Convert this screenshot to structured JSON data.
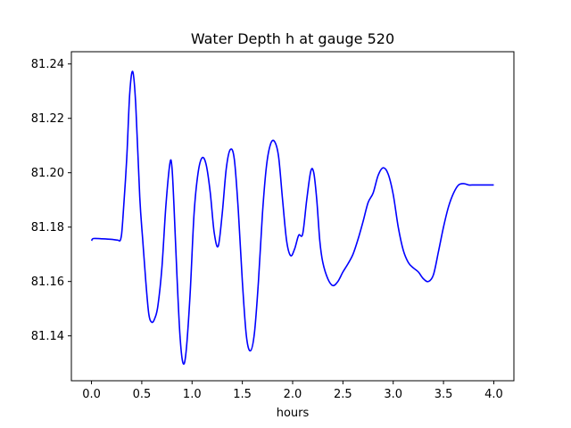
{
  "chart_data": {
    "type": "line",
    "title": "Water Depth h at gauge 520",
    "xlabel": "hours",
    "ylabel": "",
    "xlim": [
      -0.2,
      4.2
    ],
    "ylim": [
      81.1235,
      81.2445
    ],
    "xticks": [
      0.0,
      0.5,
      1.0,
      1.5,
      2.0,
      2.5,
      3.0,
      3.5,
      4.0
    ],
    "xtick_labels": [
      "0.0",
      "0.5",
      "1.0",
      "1.5",
      "2.0",
      "2.5",
      "3.0",
      "3.5",
      "4.0"
    ],
    "yticks": [
      81.14,
      81.16,
      81.18,
      81.2,
      81.22,
      81.24
    ],
    "ytick_labels": [
      "81.14",
      "81.16",
      "81.18",
      "81.20",
      "81.22",
      "81.24"
    ],
    "grid": false,
    "series": [
      {
        "color": "#0000ff",
        "x": [
          0.0,
          0.02,
          0.1,
          0.2,
          0.26,
          0.29,
          0.31,
          0.35,
          0.38,
          0.41,
          0.44,
          0.48,
          0.51,
          0.54,
          0.57,
          0.6,
          0.63,
          0.66,
          0.7,
          0.74,
          0.78,
          0.8,
          0.82,
          0.85,
          0.88,
          0.91,
          0.94,
          0.98,
          1.02,
          1.06,
          1.1,
          1.14,
          1.18,
          1.22,
          1.26,
          1.3,
          1.34,
          1.38,
          1.42,
          1.46,
          1.5,
          1.54,
          1.58,
          1.62,
          1.66,
          1.7,
          1.74,
          1.78,
          1.82,
          1.86,
          1.9,
          1.94,
          1.98,
          2.02,
          2.06,
          2.1,
          2.14,
          2.18,
          2.21,
          2.24,
          2.27,
          2.3,
          2.35,
          2.4,
          2.45,
          2.5,
          2.55,
          2.6,
          2.65,
          2.7,
          2.75,
          2.8,
          2.85,
          2.9,
          2.95,
          3.0,
          3.05,
          3.1,
          3.15,
          3.2,
          3.25,
          3.3,
          3.35,
          3.4,
          3.45,
          3.5,
          3.55,
          3.6,
          3.65,
          3.7,
          3.75,
          3.8,
          3.85,
          3.9,
          3.95,
          4.0
        ],
        "y": [
          81.175,
          81.1758,
          81.1757,
          81.1755,
          81.1752,
          81.1755,
          81.182,
          81.205,
          81.229,
          81.2372,
          81.225,
          81.191,
          81.175,
          81.16,
          81.148,
          81.145,
          81.1465,
          81.151,
          81.165,
          81.188,
          81.2035,
          81.202,
          81.188,
          81.162,
          81.14,
          81.13,
          81.134,
          81.155,
          81.185,
          81.2,
          81.2055,
          81.203,
          81.193,
          81.178,
          81.173,
          81.185,
          81.2015,
          81.2085,
          81.205,
          81.186,
          81.16,
          81.14,
          81.1345,
          81.141,
          81.16,
          81.185,
          81.2025,
          81.2105,
          81.2115,
          81.206,
          81.19,
          81.175,
          81.1695,
          81.172,
          81.177,
          81.1775,
          81.19,
          81.2005,
          81.2,
          81.19,
          81.175,
          81.167,
          81.161,
          81.1585,
          81.16,
          81.1635,
          81.1665,
          81.17,
          81.1755,
          81.182,
          81.189,
          81.1925,
          81.199,
          81.2018,
          81.1995,
          81.192,
          81.18,
          81.1715,
          81.167,
          81.165,
          81.1635,
          81.161,
          81.16,
          81.1625,
          81.171,
          81.18,
          81.1875,
          81.1925,
          81.1955,
          81.196,
          81.1955,
          81.1955,
          81.1955,
          81.1955,
          81.1955,
          81.1955
        ]
      }
    ]
  }
}
